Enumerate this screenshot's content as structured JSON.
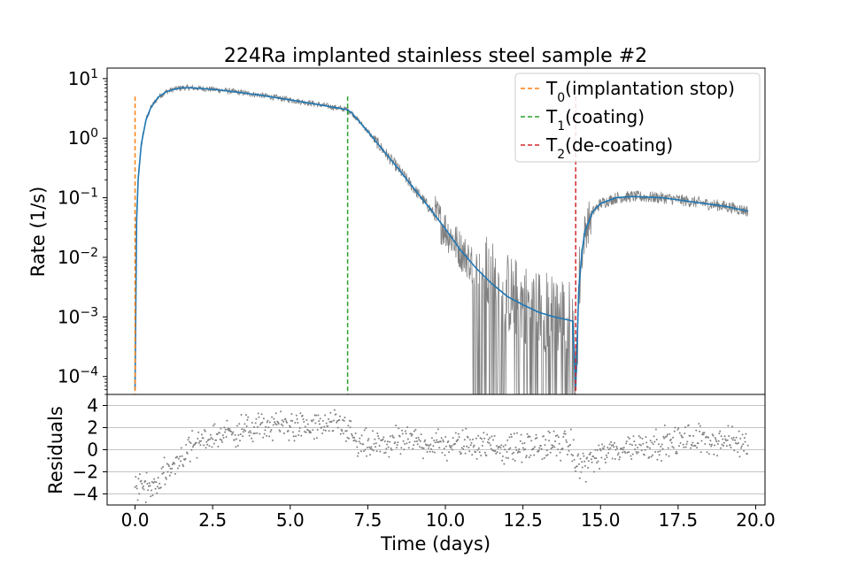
{
  "chart_data": {
    "type": "line",
    "title": "224Ra implanted stainless steel sample #2",
    "xlabel": "Time (days)",
    "xlim": [
      -0.9,
      20.3
    ],
    "x_ticks": [
      0.0,
      2.5,
      5.0,
      7.5,
      10.0,
      12.5,
      15.0,
      17.5,
      20.0
    ],
    "x_tick_labels": [
      "0.0",
      "2.5",
      "5.0",
      "7.5",
      "10.0",
      "12.5",
      "15.0",
      "17.5",
      "20.0"
    ],
    "main_panel": {
      "ylabel": "Rate (1/s)",
      "yscale": "log",
      "ylim": [
        5e-05,
        15
      ],
      "y_ticks": [
        {
          "value": 0.0001,
          "base": "10",
          "exp": "−4"
        },
        {
          "value": 0.001,
          "base": "10",
          "exp": "−3"
        },
        {
          "value": 0.01,
          "base": "10",
          "exp": "−2"
        },
        {
          "value": 0.1,
          "base": "10",
          "exp": "−1"
        },
        {
          "value": 1,
          "base": "10",
          "exp": "0"
        },
        {
          "value": 10,
          "base": "10",
          "exp": "1"
        }
      ],
      "series": [
        {
          "kind": "measured",
          "color": "#808080",
          "x": [
            0.0,
            0.05,
            0.1,
            0.2,
            0.35,
            0.5,
            0.75,
            1.0,
            1.25,
            1.5,
            1.75,
            2.0,
            2.5,
            3.0,
            4.0,
            5.0,
            6.0,
            6.85,
            7.0,
            7.5,
            8.0,
            8.5,
            9.0,
            9.5,
            10.0,
            10.5,
            11.0,
            11.5,
            12.0,
            12.5,
            13.0,
            13.5,
            14.0,
            14.1,
            14.2,
            14.3,
            14.4,
            14.5,
            14.75,
            15.0,
            15.5,
            16.0,
            17.0,
            18.0,
            19.0,
            19.75
          ],
          "y": [
            6e-05,
            0.04,
            0.2,
            0.8,
            2.0,
            3.2,
            4.9,
            6.0,
            6.6,
            7.0,
            7.0,
            6.9,
            6.6,
            6.2,
            5.3,
            4.4,
            3.6,
            3.0,
            2.6,
            1.3,
            0.62,
            0.3,
            0.14,
            0.066,
            0.03,
            0.013,
            0.0065,
            0.004,
            0.0025,
            0.0018,
            0.0014,
            0.0011,
            0.0009,
            0.00085,
            6e-05,
            0.003,
            0.012,
            0.028,
            0.058,
            0.08,
            0.1,
            0.105,
            0.1,
            0.085,
            0.072,
            0.06
          ]
        },
        {
          "kind": "fit",
          "color": "#1f77b4",
          "x": [
            0.0,
            0.05,
            0.1,
            0.2,
            0.35,
            0.5,
            0.75,
            1.0,
            1.25,
            1.5,
            1.75,
            2.0,
            2.5,
            3.0,
            4.0,
            5.0,
            6.0,
            6.85,
            7.0,
            7.5,
            8.0,
            8.5,
            9.0,
            9.5,
            10.0,
            10.5,
            11.0,
            11.5,
            12.0,
            12.5,
            13.0,
            13.5,
            14.0,
            14.1,
            14.2,
            14.3,
            14.4,
            14.5,
            14.75,
            15.0,
            15.5,
            16.0,
            17.0,
            18.0,
            19.0,
            19.75
          ],
          "y": [
            6e-05,
            0.04,
            0.2,
            0.8,
            2.0,
            3.2,
            4.9,
            6.0,
            6.6,
            7.0,
            7.0,
            6.9,
            6.6,
            6.2,
            5.3,
            4.4,
            3.6,
            3.0,
            2.6,
            1.3,
            0.62,
            0.3,
            0.14,
            0.066,
            0.03,
            0.013,
            0.0065,
            0.0036,
            0.0022,
            0.0016,
            0.0012,
            0.001,
            0.00088,
            0.00085,
            6e-05,
            0.003,
            0.012,
            0.028,
            0.058,
            0.08,
            0.1,
            0.105,
            0.1,
            0.085,
            0.072,
            0.06
          ]
        }
      ],
      "markers": [
        {
          "label": "T",
          "sub": "0",
          "desc": "(implantation stop)",
          "x": 0.0,
          "color": "#ff7f0e"
        },
        {
          "label": "T",
          "sub": "1",
          "desc": "(coating)",
          "x": 6.85,
          "color": "#2ca02c"
        },
        {
          "label": "T",
          "sub": "2",
          "desc": "(de-coating)",
          "x": 14.2,
          "color": "#d62728"
        }
      ],
      "marker_top": 5,
      "legend_position": "upper right"
    },
    "residual_panel": {
      "ylabel": "Residuals",
      "ylim": [
        -5,
        5
      ],
      "y_ticks": [
        4,
        2,
        0,
        -2,
        -4
      ],
      "y_tick_labels": [
        "4",
        "2",
        "0",
        "−2",
        "−4"
      ],
      "grid": true,
      "color": "#808080",
      "trend": {
        "x": [
          0.0,
          0.3,
          0.6,
          0.9,
          1.2,
          1.5,
          2.0,
          2.5,
          3.0,
          3.5,
          4.0,
          4.5,
          5.0,
          5.5,
          6.0,
          6.5,
          6.85,
          7.2,
          8.0,
          9.0,
          10.0,
          11.0,
          12.0,
          13.0,
          14.0,
          14.25,
          14.5,
          15.0,
          15.5,
          16.0,
          17.0,
          18.0,
          19.0,
          19.75
        ],
        "y": [
          -3.0,
          -3.5,
          -3.2,
          -2.5,
          -1.5,
          -0.5,
          0.5,
          1.2,
          1.5,
          1.8,
          2.0,
          2.2,
          2.2,
          2.0,
          2.1,
          2.2,
          2.0,
          0.2,
          0.5,
          0.8,
          0.4,
          0.6,
          0.1,
          0.3,
          0.5,
          -1.5,
          -1.2,
          -0.5,
          0.0,
          0.3,
          0.6,
          1.0,
          0.8,
          0.5
        ]
      },
      "spread": 1.0
    }
  }
}
